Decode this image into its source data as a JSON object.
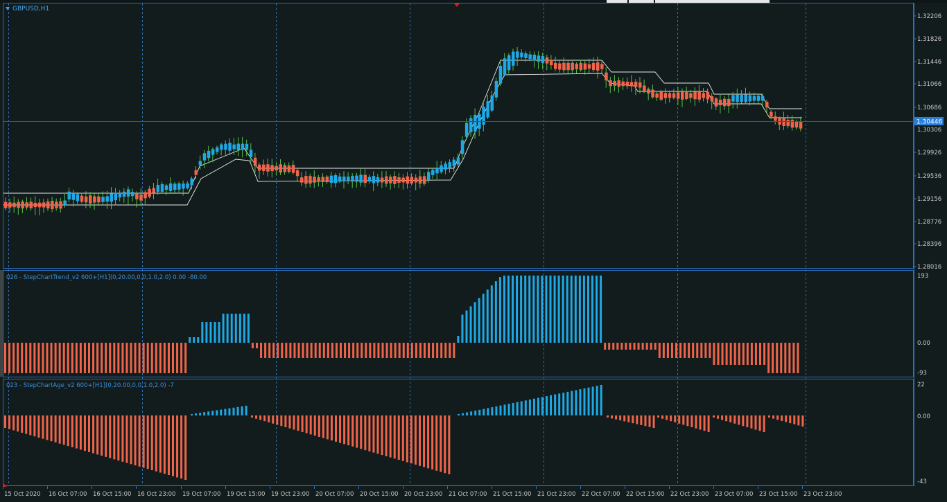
{
  "window": {
    "symbol_label": "GBPUSD,H1",
    "background": "#121c1c",
    "border_color": "#2b6fc0",
    "grid_color": "#2f6fb0",
    "bull_color": "#1ea9e6",
    "bear_color": "#f0644a",
    "wick_color": "#55c24a",
    "price_line_color": "#c81e1e"
  },
  "main_panel": {
    "current_price": "1.30446",
    "price_ticks": [
      "1.32206",
      "1.31826",
      "1.31446",
      "1.31066",
      "1.30686",
      "1.30306",
      "1.29926",
      "1.29536",
      "1.29156",
      "1.28776",
      "1.28396",
      "1.28016"
    ]
  },
  "indicator1": {
    "label": "026 - StepChartTrend_v2 600+[H1](0,20.00,0,0,1.0,2.0) 0.00 -80.00",
    "ticks": [
      "193",
      "0.00",
      "-93"
    ]
  },
  "indicator2": {
    "label": "023 - StepChartAge_v2 600+[H1](0,20.00,0,0,1.0,2.0) -7",
    "ticks": [
      "22",
      "0.00",
      "-43"
    ]
  },
  "time_axis": {
    "labels": [
      "15 Oct 2020",
      "16 Oct 07:00",
      "16 Oct 15:00",
      "16 Oct 23:00",
      "19 Oct 07:00",
      "19 Oct 15:00",
      "19 Oct 23:00",
      "20 Oct 07:00",
      "20 Oct 15:00",
      "20 Oct 23:00",
      "21 Oct 07:00",
      "21 Oct 15:00",
      "21 Oct 23:00",
      "22 Oct 07:00",
      "22 Oct 15:00",
      "22 Oct 23:00",
      "23 Oct 07:00",
      "23 Oct 15:00",
      "23 Oct 23:00"
    ]
  }
}
